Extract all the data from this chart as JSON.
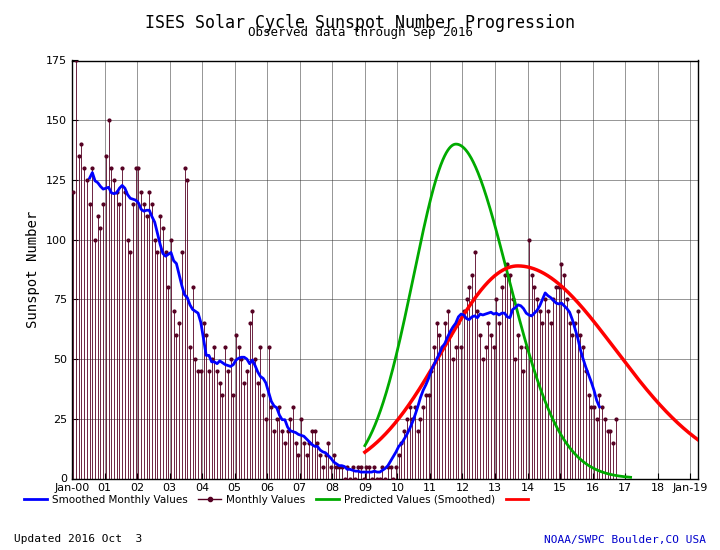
{
  "title": "ISES Solar Cycle Sunspot Number Progression",
  "subtitle": "Observed data through Sep 2016",
  "ylabel": "Sunspot Number",
  "updated_text": "Updated 2016 Oct  3",
  "credit_text": "NOAA/SWPC Boulder,CO USA",
  "title_color": "#000000",
  "subtitle_color": "#000000",
  "ylabel_color": "#000000",
  "credit_color": "#0000cc",
  "ylim": [
    0,
    175
  ],
  "yticks": [
    0,
    25,
    50,
    75,
    100,
    125,
    150,
    175
  ],
  "background_color": "#ffffff",
  "grid_color": "#333333",
  "smoothed_color": "#0000ff",
  "monthly_color": "#550022",
  "predicted_green_color": "#00aa00",
  "predicted_red_color": "#ff0000",
  "x_start_year": 2000.0,
  "x_end_year": 2019.25,
  "xtick_years": [
    2000,
    2001,
    2002,
    2003,
    2004,
    2005,
    2006,
    2007,
    2008,
    2009,
    2010,
    2011,
    2012,
    2013,
    2014,
    2015,
    2016,
    2017,
    2018,
    2019
  ],
  "xtick_labels": [
    "Jan-00",
    "01",
    "02",
    "03",
    "04",
    "05",
    "06",
    "07",
    "08",
    "09",
    "10",
    "11",
    "12",
    "13",
    "14",
    "15",
    "16",
    "17",
    "18",
    "Jan-19"
  ],
  "raw_monthly": [
    120,
    175,
    135,
    140,
    130,
    125,
    115,
    130,
    100,
    110,
    105,
    115,
    135,
    150,
    130,
    125,
    120,
    115,
    130,
    120,
    100,
    95,
    115,
    130,
    130,
    120,
    115,
    110,
    120,
    115,
    100,
    95,
    110,
    105,
    95,
    80,
    100,
    70,
    60,
    65,
    95,
    130,
    125,
    55,
    80,
    50,
    45,
    45,
    65,
    60,
    45,
    50,
    55,
    45,
    40,
    35,
    55,
    45,
    50,
    35,
    60,
    55,
    50,
    40,
    45,
    65,
    70,
    50,
    40,
    55,
    35,
    25,
    55,
    30,
    20,
    25,
    30,
    20,
    15,
    20,
    25,
    30,
    15,
    10,
    25,
    15,
    10,
    15,
    20,
    20,
    15,
    10,
    5,
    10,
    15,
    5,
    10,
    5,
    5,
    5,
    0,
    5,
    0,
    5,
    0,
    5,
    5,
    0,
    5,
    5,
    0,
    5,
    0,
    0,
    5,
    0,
    5,
    5,
    0,
    5,
    10,
    15,
    20,
    25,
    30,
    25,
    30,
    20,
    25,
    30,
    35,
    35,
    45,
    55,
    65,
    60,
    55,
    65,
    70,
    60,
    50,
    55,
    65,
    55,
    70,
    75,
    80,
    85,
    95,
    70,
    60,
    50,
    55,
    65,
    60,
    55,
    75,
    65,
    80,
    85,
    90,
    85,
    75,
    50,
    60,
    55,
    45,
    55,
    100,
    85,
    80,
    75,
    70,
    65,
    75,
    70,
    65,
    75,
    80,
    80,
    90,
    85,
    75,
    65,
    60,
    65,
    70,
    60,
    55,
    45,
    35,
    30,
    30,
    25,
    35,
    30,
    25,
    20,
    20,
    15,
    25
  ]
}
